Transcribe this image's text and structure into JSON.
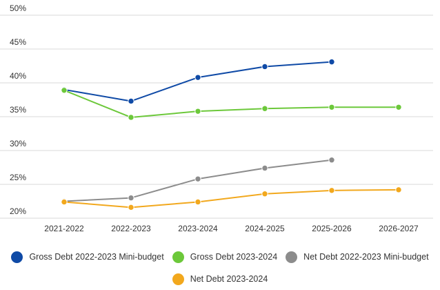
{
  "chart_data": {
    "type": "line",
    "title": "",
    "xlabel": "",
    "ylabel": "",
    "categories": [
      "2021-2022",
      "2022-2023",
      "2023-2024",
      "2024-2025",
      "2025-2026",
      "2026-2027"
    ],
    "ylim": [
      20,
      50
    ],
    "yticks": [
      20,
      25,
      30,
      35,
      40,
      45,
      50
    ],
    "ytick_labels": [
      "20%",
      "25%",
      "30%",
      "35%",
      "40%",
      "45%",
      "50%"
    ],
    "grid": true,
    "legend_position": "bottom",
    "series": [
      {
        "name": "Gross Debt 2022-2023 Mini-budget",
        "color": "#0f4aa6",
        "values": [
          39.0,
          37.3,
          40.8,
          42.4,
          43.1,
          null
        ]
      },
      {
        "name": "Gross Debt 2023-2024",
        "color": "#6cc83a",
        "values": [
          38.9,
          34.9,
          35.8,
          36.2,
          36.4,
          36.4
        ]
      },
      {
        "name": "Net Debt 2022-2023 Mini-budget",
        "color": "#8c8c8c",
        "values": [
          22.5,
          23.0,
          25.8,
          27.4,
          28.6,
          null
        ]
      },
      {
        "name": "Net Debt 2023-2024",
        "color": "#f2a81d",
        "values": [
          22.4,
          21.6,
          22.4,
          23.6,
          24.1,
          24.2
        ]
      }
    ]
  }
}
